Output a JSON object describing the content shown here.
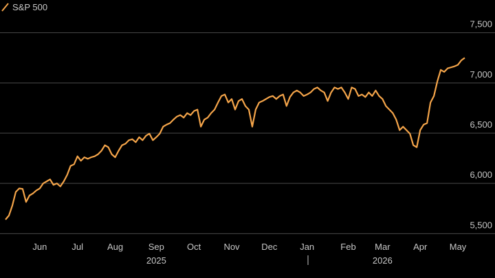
{
  "chart_data": {
    "type": "line",
    "series": [
      {
        "name": "S&P 500",
        "color": "#f5a54a",
        "values": [
          5640,
          5680,
          5780,
          5915,
          5950,
          5945,
          5815,
          5880,
          5900,
          5930,
          5950,
          6000,
          6020,
          6040,
          5985,
          6000,
          5970,
          6020,
          6085,
          6175,
          6190,
          6270,
          6225,
          6260,
          6245,
          6260,
          6270,
          6290,
          6325,
          6380,
          6360,
          6290,
          6260,
          6325,
          6380,
          6395,
          6430,
          6440,
          6410,
          6460,
          6430,
          6475,
          6495,
          6430,
          6460,
          6495,
          6565,
          6585,
          6600,
          6635,
          6665,
          6680,
          6655,
          6700,
          6680,
          6720,
          6735,
          6565,
          6635,
          6655,
          6700,
          6735,
          6805,
          6870,
          6885,
          6805,
          6840,
          6735,
          6820,
          6840,
          6770,
          6735,
          6565,
          6735,
          6805,
          6820,
          6840,
          6860,
          6870,
          6840,
          6870,
          6885,
          6770,
          6860,
          6905,
          6925,
          6905,
          6870,
          6885,
          6905,
          6940,
          6955,
          6925,
          6905,
          6820,
          6905,
          6955,
          6940,
          6955,
          6905,
          6840,
          6955,
          6940,
          6870,
          6885,
          6860,
          6905,
          6870,
          6925,
          6870,
          6840,
          6770,
          6735,
          6700,
          6635,
          6530,
          6565,
          6530,
          6495,
          6380,
          6360,
          6530,
          6585,
          6600,
          6805,
          6870,
          7015,
          7130,
          7110,
          7145,
          7155,
          7165,
          7180,
          7225,
          7250
        ]
      }
    ],
    "categories": [
      null,
      null,
      null,
      null,
      null,
      null,
      null,
      null,
      null,
      null,
      "Jun",
      null,
      null,
      null,
      null,
      null,
      null,
      null,
      null,
      null,
      null,
      "Jul",
      null,
      null,
      null,
      null,
      null,
      null,
      null,
      null,
      null,
      null,
      "Aug",
      null,
      null,
      null,
      null,
      null,
      null,
      null,
      null,
      null,
      null,
      null,
      "Sep",
      null,
      null,
      null,
      null,
      null,
      null,
      null,
      null,
      null,
      null,
      "Oct",
      null,
      null,
      null,
      null,
      null,
      null,
      null,
      null,
      null,
      null,
      "Nov",
      null,
      null,
      null,
      null,
      null,
      null,
      null,
      null,
      null,
      null,
      "Dec",
      null,
      null,
      null,
      null,
      null,
      null,
      null,
      null,
      null,
      null,
      "Jan",
      null,
      null,
      null,
      null,
      null,
      null,
      null,
      null,
      null,
      null,
      null,
      "Feb",
      null,
      null,
      null,
      null,
      null,
      null,
      null,
      null,
      null,
      "Mar",
      null,
      null,
      null,
      null,
      null,
      null,
      null,
      null,
      null,
      null,
      "Apr",
      null,
      null,
      null,
      null,
      null,
      null,
      null,
      null,
      null,
      null,
      "May",
      null,
      null
    ],
    "year_categories": [
      null,
      null,
      null,
      null,
      null,
      null,
      null,
      null,
      null,
      null,
      null,
      null,
      null,
      null,
      null,
      null,
      null,
      null,
      null,
      null,
      null,
      null,
      null,
      null,
      null,
      null,
      null,
      null,
      null,
      null,
      null,
      null,
      null,
      null,
      null,
      null,
      null,
      null,
      null,
      null,
      null,
      null,
      null,
      null,
      "2025",
      null,
      null,
      null,
      null,
      null,
      null,
      null,
      null,
      null,
      null,
      null,
      null,
      null,
      null,
      null,
      null,
      null,
      null,
      null,
      null,
      null,
      null,
      null,
      null,
      null,
      null,
      null,
      null,
      null,
      null,
      null,
      null,
      null,
      null,
      null,
      null,
      null,
      null,
      null,
      null,
      null,
      null,
      null,
      null,
      null,
      null,
      null,
      null,
      null,
      null,
      null,
      null,
      null,
      null,
      null,
      null,
      null,
      null,
      null,
      null,
      null,
      null,
      null,
      null,
      null,
      "2026",
      null,
      null,
      null,
      null,
      null,
      null,
      null,
      null,
      null,
      null,
      null,
      null,
      null,
      null,
      null,
      null,
      null,
      null,
      null,
      null,
      null,
      null,
      null,
      null
    ],
    "ylim": [
      5400,
      7600
    ],
    "yticks": [
      {
        "value": 5500,
        "label": "5,500"
      },
      {
        "value": 6000,
        "label": "6,000"
      },
      {
        "value": 6500,
        "label": "6,500"
      },
      {
        "value": 7000,
        "label": "7,000"
      },
      {
        "value": 7500,
        "label": "7,500"
      }
    ],
    "grid": true
  }
}
